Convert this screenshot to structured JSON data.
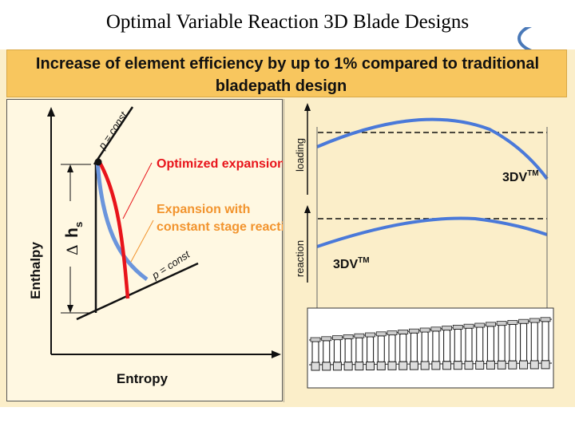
{
  "slide": {
    "title": "Optimal Variable Reaction 3D Blade Designs"
  },
  "banner": {
    "line1": "Increase of element efficiency by up to 1% compared to traditional",
    "line2": "bladepath design"
  },
  "hs_diagram": {
    "y_axis_label": "Enthalpy",
    "x_axis_label": "Entropy",
    "delta_symbol": "Δ",
    "delta_var": "h",
    "delta_sub": "s",
    "isobar_top_label": "p = const",
    "isobar_bottom_label": "p = const",
    "optimized_label": "Optimized expansion",
    "constant_label_line1": "Expansion with",
    "constant_label_line2": "constant stage reactio",
    "colors": {
      "optimized": "#e8141b",
      "constant": "#6b95dc",
      "constant_text": "#f2942e"
    }
  },
  "loading_plot": {
    "axis_label": "loading",
    "design_label": "3DV",
    "design_sup": "TM"
  },
  "reaction_plot": {
    "axis_label": "reaction",
    "design_label": "3DV",
    "design_sup": "TM"
  },
  "blade_panel": {
    "stage_count": 22
  }
}
